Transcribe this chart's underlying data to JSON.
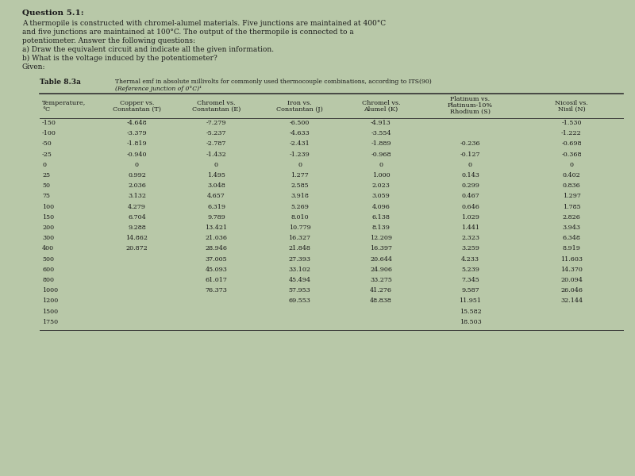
{
  "title": "Question 5.1:",
  "question_text": [
    "A thermopile is constructed with chromel-alumel materials. Five junctions are maintained at 400°C",
    "and five junctions are maintained at 100°C. The output of the thermopile is connected to a",
    "potentiometer. Answer the following questions:",
    "a) Draw the equivalent circuit and indicate all the given information.",
    "b) What is the voltage induced by the potentiometer?",
    "Given:"
  ],
  "table_label": "Table 8.3a",
  "table_caption_line1": "Thermal emf in absolute millivolts for commonly used thermocouple combinations, according to ITS(90)",
  "table_caption_line2": "(Reference junction of 0°C)¹",
  "col_headers": [
    [
      "Temperature,",
      "°C"
    ],
    [
      "Copper vs.",
      "Constantan (T)"
    ],
    [
      "Chromel vs.",
      "Constantan (E)"
    ],
    [
      "Iron vs.",
      "Constantan (J)"
    ],
    [
      "Chromel vs.",
      "Alumel (K)"
    ],
    [
      "Platinum vs.",
      "Platinum-10%",
      "Rhodium (S)"
    ],
    [
      "Nicosil vs.",
      "Nisil (N)"
    ]
  ],
  "temperatures": [
    "-150",
    "-100",
    "-50",
    "-25",
    "0",
    "25",
    "50",
    "75",
    "100",
    "150",
    "200",
    "300",
    "400",
    "500",
    "600",
    "800",
    "1000",
    "1200",
    "1500",
    "1750"
  ],
  "copper_constantan": [
    "-4.648",
    "-3.379",
    "-1.819",
    "-0.940",
    "0",
    "0.992",
    "2.036",
    "3.132",
    "4.279",
    "6.704",
    "9.288",
    "14.862",
    "20.872",
    "",
    "",
    "",
    "",
    "",
    "",
    ""
  ],
  "chromel_constantan": [
    "-7.279",
    "-5.237",
    "-2.787",
    "-1.432",
    "0",
    "1.495",
    "3.048",
    "4.657",
    "6.319",
    "9.789",
    "13.421",
    "21.036",
    "28.946",
    "37.005",
    "45.093",
    "61.017",
    "76.373",
    "",
    "",
    ""
  ],
  "iron_constantan": [
    "-6.500",
    "-4.633",
    "-2.431",
    "-1.239",
    "0",
    "1.277",
    "2.585",
    "3.918",
    "5.269",
    "8.010",
    "10.779",
    "16.327",
    "21.848",
    "27.393",
    "33.102",
    "45.494",
    "57.953",
    "69.553",
    "",
    ""
  ],
  "chromel_alumel": [
    "-4.913",
    "-3.554",
    "-1.889",
    "-0.968",
    "0",
    "1.000",
    "2.023",
    "3.059",
    "4.096",
    "6.138",
    "8.139",
    "12.209",
    "16.397",
    "20.644",
    "24.906",
    "33.275",
    "41.276",
    "48.838",
    "",
    ""
  ],
  "platinum_rhodium": [
    "",
    "",
    "-0.236",
    "-0.127",
    "0",
    "0.143",
    "0.299",
    "0.467",
    "0.646",
    "1.029",
    "1.441",
    "2.323",
    "3.259",
    "4.233",
    "5.239",
    "7.345",
    "9.587",
    "11.951",
    "15.582",
    "18.503"
  ],
  "nicosil_nisil": [
    "-1.530",
    "-1.222",
    "-0.698",
    "-0.368",
    "0",
    "0.402",
    "0.836",
    "1.297",
    "1.785",
    "2.826",
    "3.943",
    "6.348",
    "8.919",
    "11.603",
    "14.370",
    "20.094",
    "26.046",
    "32.144",
    "",
    ""
  ],
  "bg_color": "#b8c8a8",
  "text_color": "#1a1a1a",
  "title_fontsize": 7.5,
  "body_fontsize": 6.5,
  "table_fontsize": 5.8,
  "header_fontsize": 5.8,
  "caption_fontsize": 5.5,
  "table_label_fontsize": 6.5
}
